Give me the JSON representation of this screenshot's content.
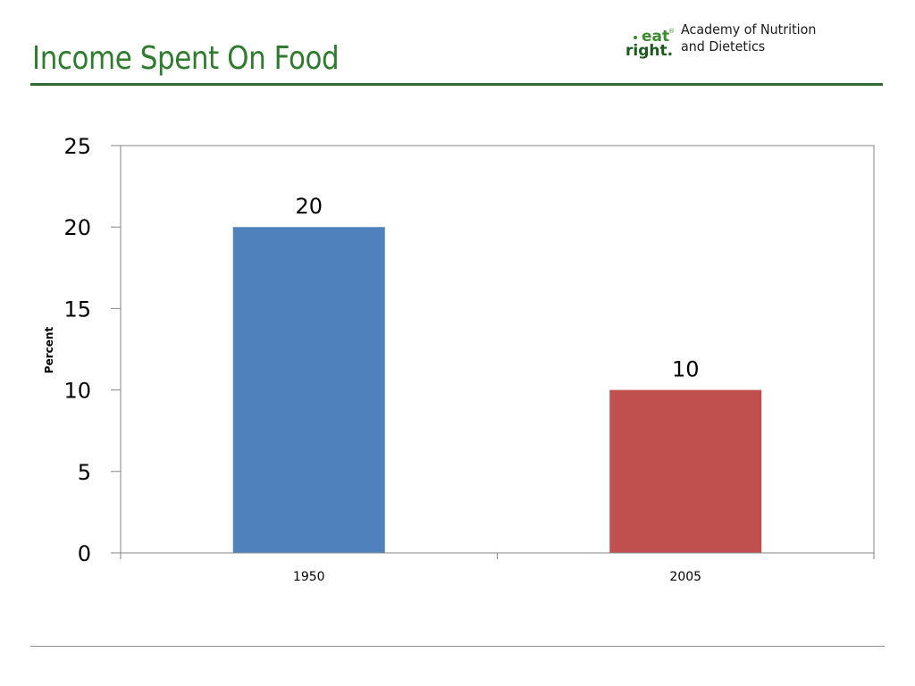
{
  "slide": {
    "title": "Income Spent On Food"
  },
  "logo": {
    "mark_top": "eat",
    "mark_bottom": "right.",
    "org_line1": "Academy of Nutrition",
    "org_line2": "and Dietetics"
  },
  "colors": {
    "title": "#2e7d2e",
    "rule": "#2e6b2e",
    "logo_green": "#3a8a2f",
    "logo_dark": "#1a5a1a"
  },
  "chart_data": {
    "type": "bar",
    "categories": [
      "1950",
      "2005"
    ],
    "values": [
      20,
      10
    ],
    "data_labels": [
      "20",
      "10"
    ],
    "bar_colors": [
      "#4f81bd",
      "#c0504d"
    ],
    "title": "",
    "xlabel": "",
    "ylabel": "Percent",
    "ylim": [
      0,
      25
    ],
    "yticks": [
      0,
      5,
      10,
      15,
      20,
      25
    ],
    "grid": false,
    "legend": "none"
  }
}
